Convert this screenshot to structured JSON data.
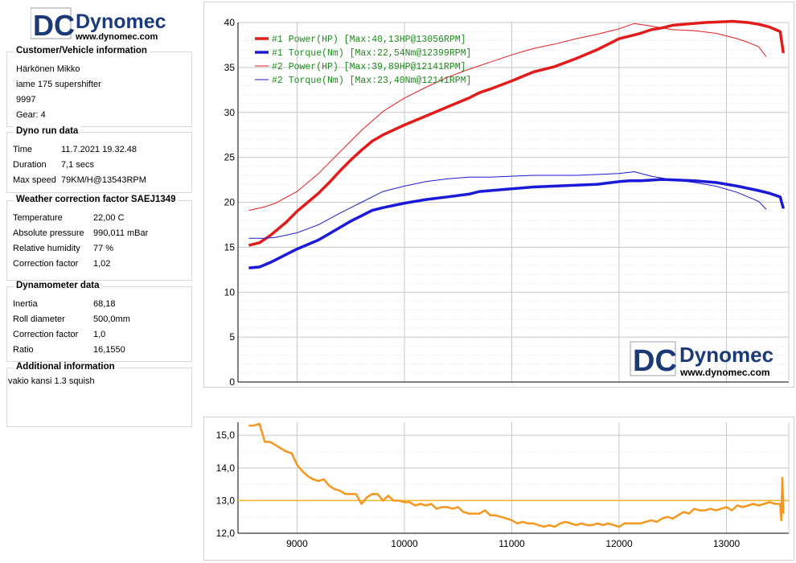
{
  "logo": {
    "text": "Dynomec",
    "mark": "DC",
    "url": "www.dynomec.com"
  },
  "customer": {
    "title": "Customer/Vehicle information",
    "lines": [
      "Härkönen Mikko",
      "iame 175 supershifter",
      "9997",
      "Gear: 4"
    ]
  },
  "dyno_run": {
    "title": "Dyno run data",
    "rows": [
      {
        "label": "Time",
        "value": "11.7.2021 19.32.48"
      },
      {
        "label": "Duration",
        "value": "7,1 secs"
      },
      {
        "label": "Max speed",
        "value": "79KM/H@13543RPM"
      }
    ]
  },
  "weather": {
    "title": "Weather correction factor SAEJ1349",
    "rows": [
      {
        "label": "Temperature",
        "value": "22,00 C"
      },
      {
        "label": "Absolute pressure",
        "value": "990,011 mBar"
      },
      {
        "label": "Relative humidity",
        "value": "77 %"
      },
      {
        "label": "Correction factor",
        "value": "1,02"
      }
    ]
  },
  "dynamometer": {
    "title": "Dynamometer data",
    "rows": [
      {
        "label": "Inertia",
        "value": "68,18"
      },
      {
        "label": "Roll diameter",
        "value": "500,0mm"
      },
      {
        "label": "Correction factor",
        "value": "1,0"
      },
      {
        "label": "Ratio",
        "value": "16,1550"
      }
    ]
  },
  "additional": {
    "title": "Additional information",
    "text": "vakio kansi 1.3 squish"
  },
  "colors": {
    "red": "#e31b1b",
    "blue": "#1a1ad8",
    "orange": "#f5961e",
    "ref_line": "#f0b323",
    "grid": "#c8c8c8"
  },
  "chart_data": [
    {
      "type": "line",
      "xlim": [
        8450,
        13580
      ],
      "ylim": [
        0,
        40
      ],
      "x_ticks": [
        9000,
        10000,
        11000,
        12000,
        13000
      ],
      "y_ticks": [
        0,
        5,
        10,
        15,
        20,
        25,
        30,
        35,
        40
      ],
      "grid": true,
      "legend_position": "top-left",
      "series": [
        {
          "name": "#1 Power(HP)",
          "label": "#1 Power(HP)  [Max:40,13HP@13056RPM]",
          "color": "#e31b1b",
          "width": 3.5,
          "x": [
            8550,
            8650,
            8750,
            8900,
            9000,
            9100,
            9200,
            9300,
            9400,
            9500,
            9600,
            9700,
            9800,
            10000,
            10200,
            10400,
            10600,
            10700,
            10800,
            11000,
            11200,
            11400,
            11600,
            11800,
            11900,
            12000,
            12100,
            12200,
            12300,
            12400,
            12500,
            12700,
            12800,
            13000,
            13056,
            13200,
            13300,
            13400,
            13500,
            13530
          ],
          "y": [
            15.2,
            15.5,
            16.3,
            17.8,
            19.0,
            20.0,
            21.0,
            22.2,
            23.5,
            24.7,
            25.8,
            26.8,
            27.5,
            28.6,
            29.6,
            30.6,
            31.6,
            32.2,
            32.6,
            33.5,
            34.5,
            35.1,
            36.0,
            37.0,
            37.6,
            38.2,
            38.5,
            38.8,
            39.2,
            39.4,
            39.7,
            39.9,
            40.0,
            40.1,
            40.13,
            40.0,
            39.8,
            39.5,
            39.0,
            36.6
          ]
        },
        {
          "name": "#1 Torque(Nm)",
          "label": "#1 Torque(Nm)  [Max:22,54Nm@12399RPM]",
          "color": "#1a1ad8",
          "width": 3.5,
          "x": [
            8550,
            8650,
            8750,
            8900,
            9000,
            9100,
            9200,
            9300,
            9400,
            9500,
            9600,
            9700,
            9800,
            10000,
            10200,
            10400,
            10600,
            10700,
            10800,
            11000,
            11200,
            11400,
            11600,
            11800,
            12000,
            12100,
            12200,
            12399,
            12500,
            12700,
            12900,
            13100,
            13300,
            13400,
            13500,
            13530
          ],
          "y": [
            12.7,
            12.8,
            13.3,
            14.2,
            14.8,
            15.3,
            15.8,
            16.5,
            17.2,
            17.9,
            18.5,
            19.1,
            19.4,
            19.9,
            20.3,
            20.6,
            20.9,
            21.2,
            21.3,
            21.5,
            21.7,
            21.8,
            21.9,
            22.0,
            22.3,
            22.4,
            22.4,
            22.54,
            22.5,
            22.4,
            22.2,
            21.8,
            21.3,
            21.0,
            20.6,
            19.3
          ]
        },
        {
          "name": "#2 Power(HP)",
          "label": "#2 Power(HP)  [Max:39,89HP@12141RPM]",
          "color": "#e31b1b",
          "width": 1,
          "x": [
            8550,
            8700,
            8800,
            9000,
            9200,
            9400,
            9600,
            9800,
            10000,
            10200,
            10400,
            10600,
            10800,
            11000,
            11200,
            11400,
            11600,
            11800,
            12000,
            12141,
            12300,
            12500,
            12700,
            12900,
            13100,
            13200,
            13300,
            13370
          ],
          "y": [
            19.1,
            19.5,
            19.9,
            21.2,
            23.2,
            25.6,
            28.0,
            30.1,
            31.6,
            32.8,
            33.9,
            34.8,
            35.6,
            36.4,
            37.1,
            37.6,
            38.2,
            38.7,
            39.3,
            39.89,
            39.6,
            39.2,
            39.1,
            38.8,
            38.2,
            37.8,
            37.3,
            36.2
          ]
        },
        {
          "name": "#2 Torque(Nm)",
          "label": "#2 Torque(Nm)  [Max:23,40Nm@12141RPM]",
          "color": "#1a1ad8",
          "width": 1,
          "x": [
            8550,
            8700,
            8800,
            9000,
            9200,
            9400,
            9600,
            9800,
            10000,
            10200,
            10400,
            10600,
            10800,
            11000,
            11200,
            11400,
            11600,
            11800,
            12000,
            12141,
            12300,
            12500,
            12700,
            12900,
            13100,
            13200,
            13300,
            13370
          ],
          "y": [
            16.0,
            16.0,
            16.1,
            16.6,
            17.5,
            18.8,
            20.0,
            21.2,
            21.8,
            22.3,
            22.6,
            22.8,
            22.8,
            22.9,
            23.0,
            23.0,
            23.0,
            23.1,
            23.2,
            23.4,
            22.9,
            22.5,
            22.2,
            21.8,
            21.1,
            20.6,
            20.1,
            19.2
          ]
        }
      ]
    },
    {
      "type": "line",
      "xlim": [
        8450,
        13580
      ],
      "ylim": [
        12.0,
        15.4
      ],
      "x_ticks": [
        9000,
        10000,
        11000,
        12000,
        13000
      ],
      "y_ticks": [
        12.0,
        13.0,
        14.0,
        15.0
      ],
      "y_tick_labels": [
        "12,0",
        "13,0",
        "14,0",
        "15,0"
      ],
      "reference_line": 13.0,
      "grid": true,
      "series": [
        {
          "color": "#f5961e",
          "width": 2.5,
          "x": [
            8550,
            8600,
            8650,
            8700,
            8750,
            8800,
            8850,
            8900,
            8950,
            9000,
            9050,
            9100,
            9150,
            9200,
            9250,
            9300,
            9350,
            9400,
            9450,
            9500,
            9550,
            9600,
            9650,
            9700,
            9750,
            9800,
            9850,
            9900,
            9950,
            10000,
            10050,
            10100,
            10150,
            10200,
            10250,
            10300,
            10350,
            10400,
            10450,
            10500,
            10550,
            10600,
            10650,
            10700,
            10750,
            10800,
            10850,
            10900,
            10950,
            11000,
            11050,
            11100,
            11150,
            11200,
            11250,
            11300,
            11350,
            11400,
            11450,
            11500,
            11550,
            11600,
            11650,
            11700,
            11750,
            11800,
            11850,
            11900,
            11950,
            12000,
            12050,
            12100,
            12150,
            12200,
            12250,
            12300,
            12350,
            12400,
            12450,
            12500,
            12550,
            12600,
            12650,
            12700,
            12750,
            12800,
            12850,
            12900,
            12950,
            13000,
            13050,
            13100,
            13150,
            13200,
            13250,
            13300,
            13350,
            13400,
            13450,
            13500,
            13510,
            13520,
            13530
          ],
          "y": [
            15.3,
            15.3,
            15.35,
            14.8,
            14.8,
            14.7,
            14.6,
            14.5,
            14.45,
            14.1,
            13.9,
            13.75,
            13.65,
            13.6,
            13.65,
            13.45,
            13.35,
            13.3,
            13.2,
            13.2,
            13.2,
            12.9,
            13.1,
            13.2,
            13.2,
            13.0,
            13.15,
            13.0,
            13.0,
            12.95,
            12.95,
            12.85,
            12.9,
            12.85,
            12.9,
            12.75,
            12.8,
            12.8,
            12.75,
            12.8,
            12.65,
            12.6,
            12.6,
            12.6,
            12.7,
            12.55,
            12.55,
            12.5,
            12.45,
            12.4,
            12.3,
            12.35,
            12.3,
            12.3,
            12.25,
            12.2,
            12.25,
            12.2,
            12.3,
            12.35,
            12.3,
            12.25,
            12.3,
            12.25,
            12.25,
            12.3,
            12.25,
            12.3,
            12.25,
            12.2,
            12.3,
            12.3,
            12.3,
            12.3,
            12.35,
            12.4,
            12.35,
            12.45,
            12.5,
            12.45,
            12.55,
            12.65,
            12.6,
            12.75,
            12.7,
            12.7,
            12.75,
            12.7,
            12.75,
            12.8,
            12.7,
            12.85,
            12.8,
            12.85,
            12.9,
            12.85,
            12.9,
            12.95,
            12.9,
            12.9,
            12.4,
            13.7,
            12.6
          ]
        }
      ]
    }
  ]
}
